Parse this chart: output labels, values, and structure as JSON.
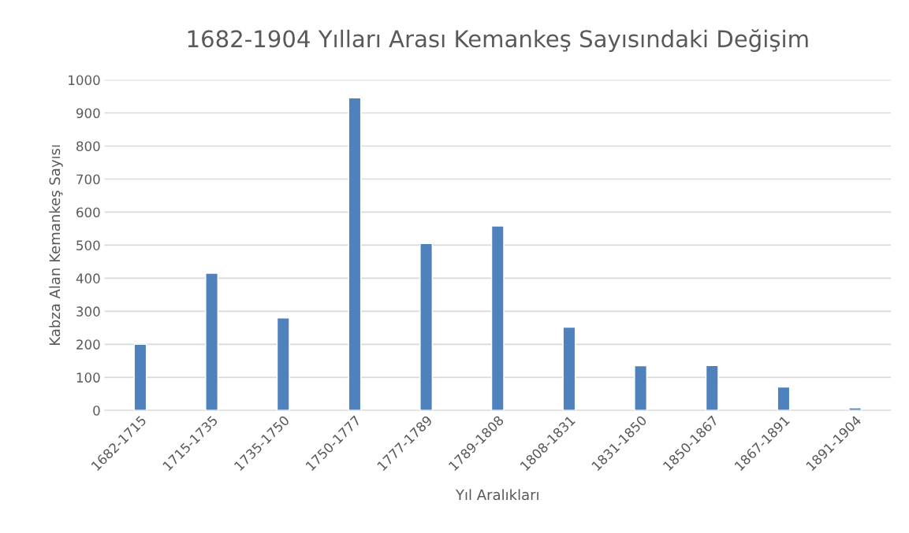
{
  "chart_data": {
    "type": "bar",
    "title": "1682-1904 Yılları Arası Kemankeş Sayısındaki Değişim",
    "xlabel": "Yıl Aralıkları",
    "ylabel": "Kabza Alan Kemankeş Sayısı",
    "categories": [
      "1682-1715",
      "1715-1735",
      "1735-1750",
      "1750-1777",
      "1777-1789",
      "1789-1808",
      "1808-1831",
      "1831-1850",
      "1850-1867",
      "1867-1891",
      "1891-1904"
    ],
    "values": [
      200,
      415,
      280,
      946,
      505,
      558,
      252,
      135,
      136,
      71,
      8
    ],
    "color": "#4f81bd",
    "ylim": [
      0,
      1000
    ],
    "yticks": [
      0,
      100,
      200,
      300,
      400,
      500,
      600,
      700,
      800,
      900,
      1000
    ],
    "grid": "y"
  }
}
